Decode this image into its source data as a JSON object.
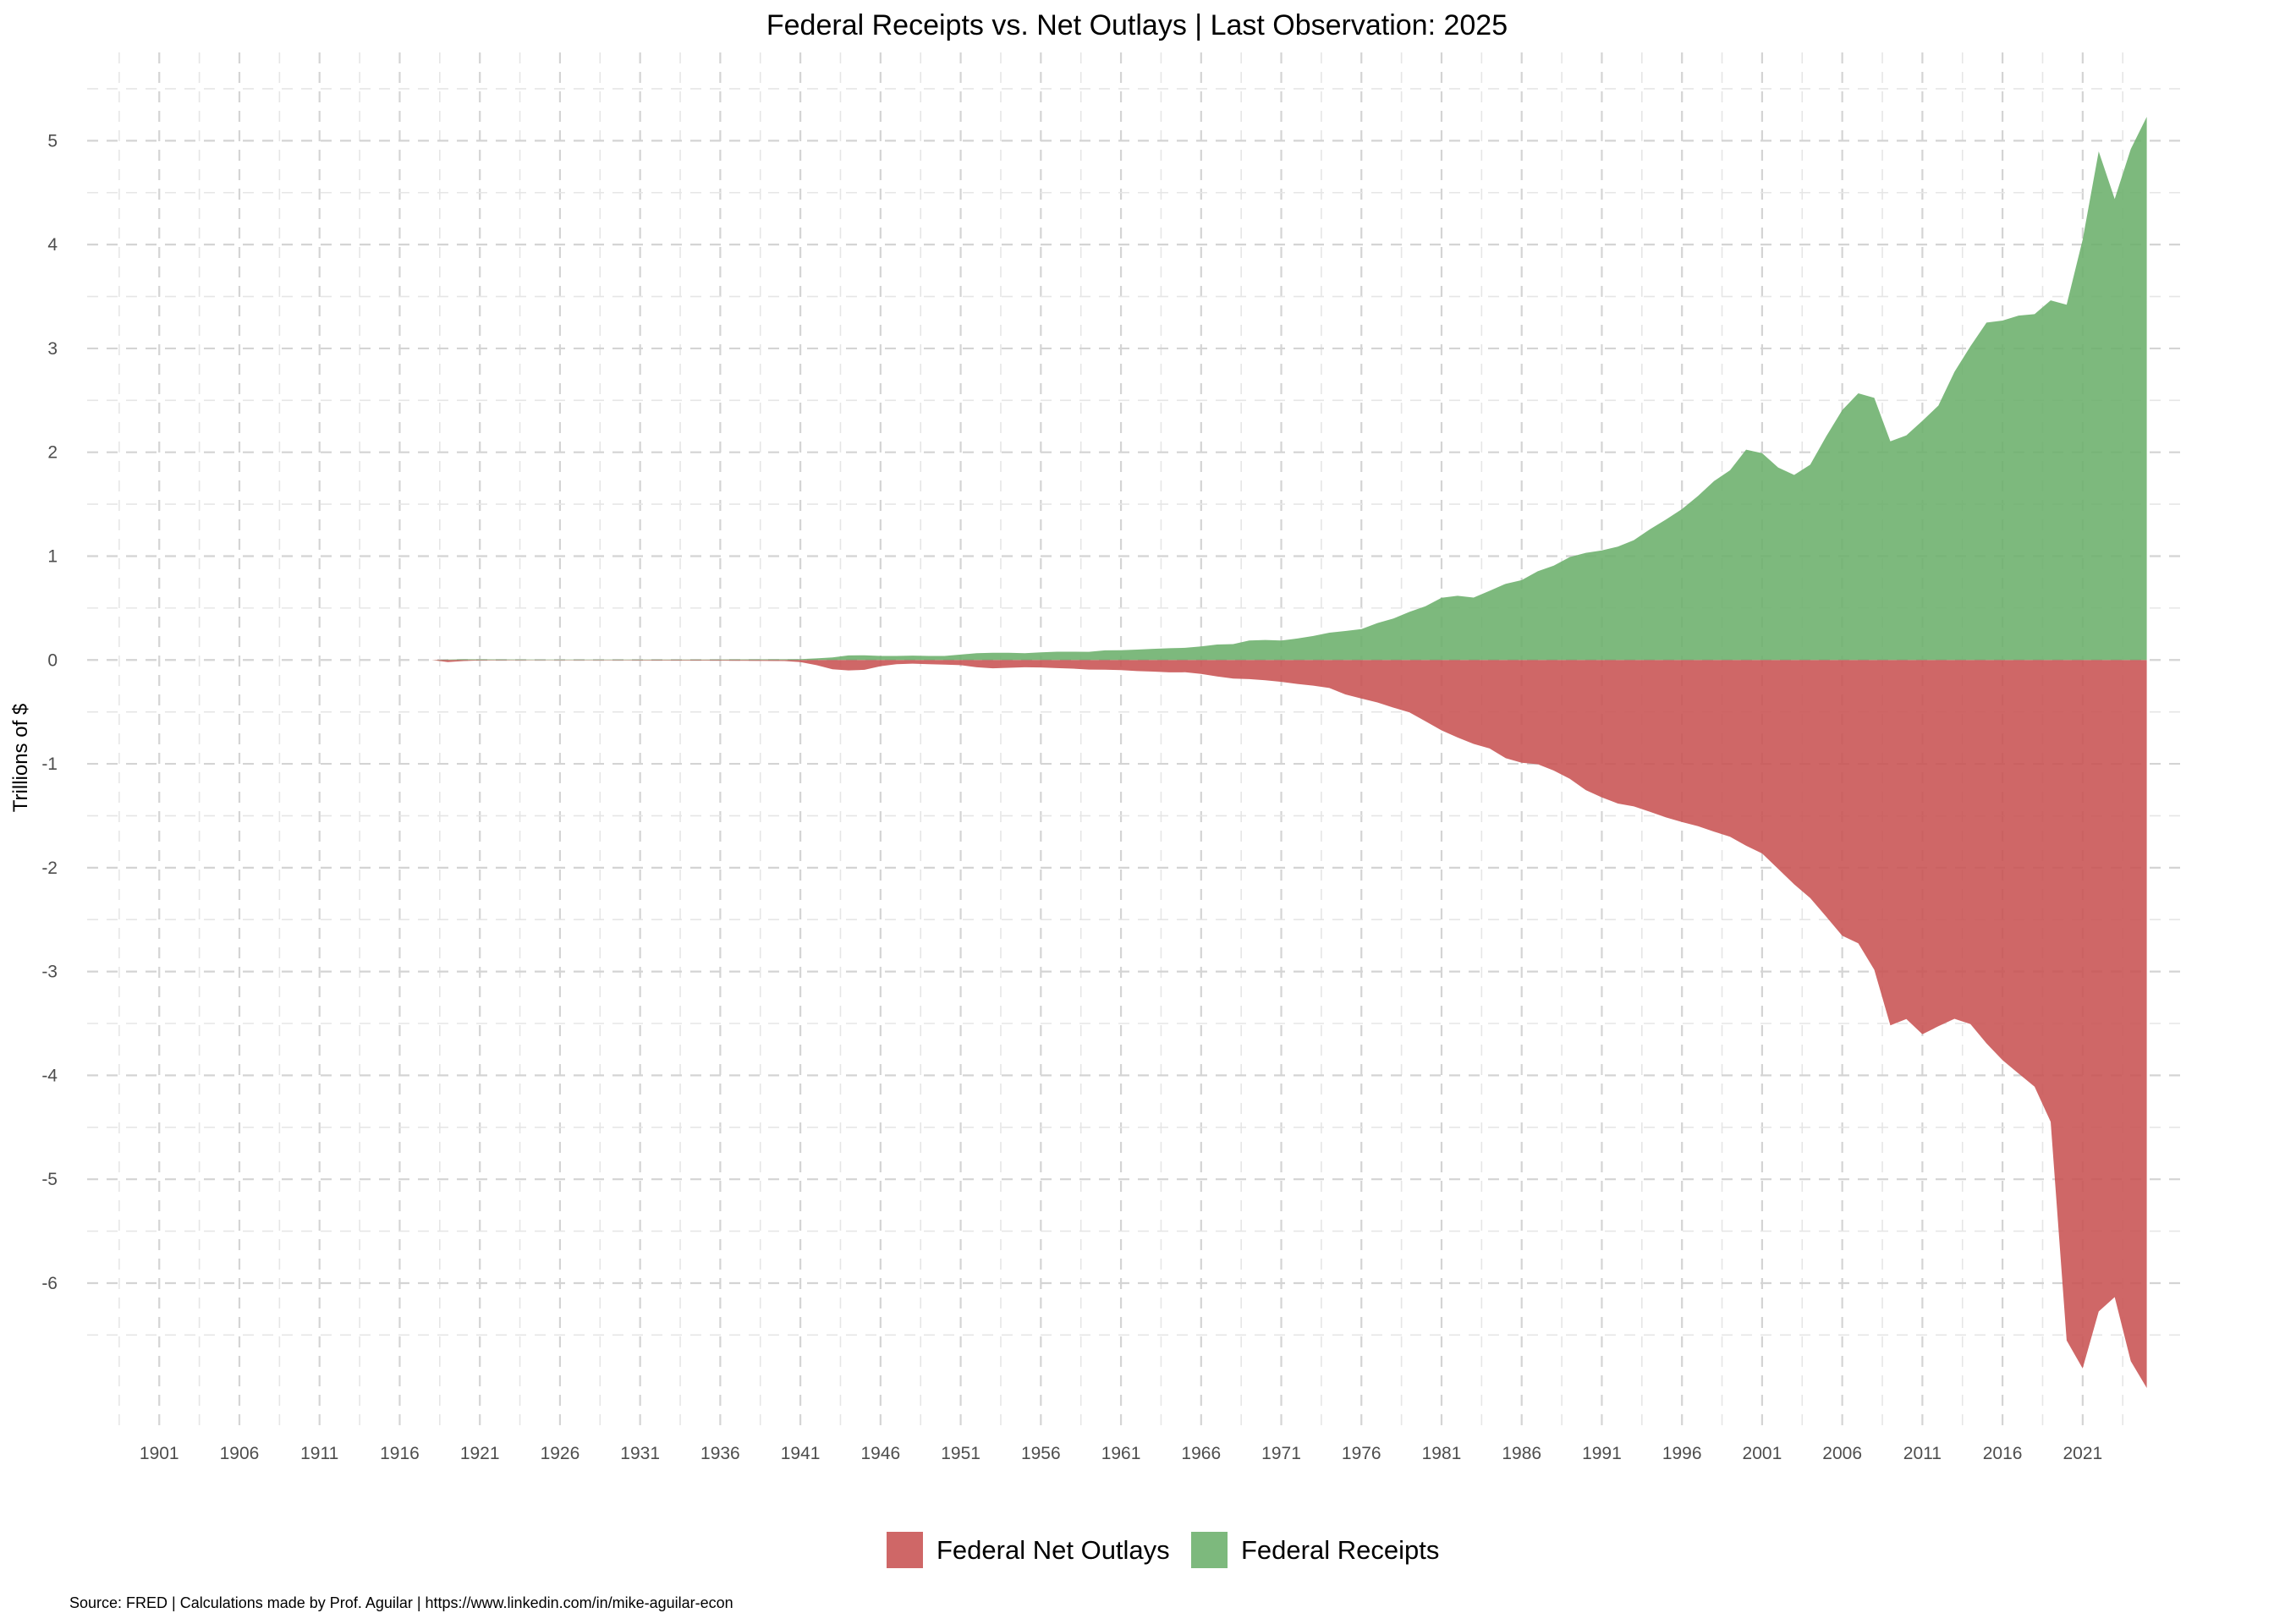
{
  "chart_data": {
    "type": "area",
    "title": "Federal Receipts vs. Net Outlays | Last Observation: 2025",
    "xlabel": "",
    "ylabel": "Trillions of $",
    "caption": "Source: FRED | Calculations made by Prof. Aguilar | https://www.linkedin.com/in/mike-aguilar-econ",
    "xlim": [
      1896.5,
      2027.5
    ],
    "ylim": [
      -7.45,
      5.85
    ],
    "x_ticks": [
      1901,
      1906,
      1911,
      1916,
      1921,
      1926,
      1931,
      1936,
      1941,
      1946,
      1951,
      1956,
      1961,
      1966,
      1971,
      1976,
      1981,
      1986,
      1991,
      1996,
      2001,
      2006,
      2011,
      2016,
      2021
    ],
    "y_ticks": [
      -6,
      -5,
      -4,
      -3,
      -2,
      -1,
      0,
      1,
      2,
      3,
      4,
      5
    ],
    "grid": true,
    "legend_position": "bottom",
    "series": [
      {
        "name": "Federal Net Outlays",
        "color": "#c85050",
        "points": [
          [
            1918,
            0
          ],
          [
            1919,
            -0.02
          ],
          [
            1920,
            -0.01
          ],
          [
            1921,
            -0.005
          ],
          [
            1925,
            -0.003
          ],
          [
            1930,
            -0.004
          ],
          [
            1935,
            -0.006
          ],
          [
            1940,
            -0.01
          ],
          [
            1941,
            -0.02
          ],
          [
            1942,
            -0.05
          ],
          [
            1943,
            -0.09
          ],
          [
            1944,
            -0.1
          ],
          [
            1945,
            -0.095
          ],
          [
            1946,
            -0.06
          ],
          [
            1947,
            -0.04
          ],
          [
            1948,
            -0.035
          ],
          [
            1949,
            -0.04
          ],
          [
            1950,
            -0.045
          ],
          [
            1951,
            -0.05
          ],
          [
            1952,
            -0.07
          ],
          [
            1953,
            -0.08
          ],
          [
            1954,
            -0.075
          ],
          [
            1955,
            -0.07
          ],
          [
            1956,
            -0.072
          ],
          [
            1957,
            -0.078
          ],
          [
            1958,
            -0.083
          ],
          [
            1959,
            -0.092
          ],
          [
            1960,
            -0.093
          ],
          [
            1961,
            -0.098
          ],
          [
            1962,
            -0.107
          ],
          [
            1963,
            -0.112
          ],
          [
            1964,
            -0.119
          ],
          [
            1965,
            -0.118
          ],
          [
            1966,
            -0.135
          ],
          [
            1967,
            -0.158
          ],
          [
            1968,
            -0.179
          ],
          [
            1969,
            -0.184
          ],
          [
            1970,
            -0.196
          ],
          [
            1971,
            -0.21
          ],
          [
            1972,
            -0.231
          ],
          [
            1973,
            -0.247
          ],
          [
            1974,
            -0.27
          ],
          [
            1975,
            -0.332
          ],
          [
            1976,
            -0.372
          ],
          [
            1977,
            -0.409
          ],
          [
            1978,
            -0.459
          ],
          [
            1979,
            -0.504
          ],
          [
            1980,
            -0.59
          ],
          [
            1981,
            -0.678
          ],
          [
            1982,
            -0.746
          ],
          [
            1983,
            -0.808
          ],
          [
            1984,
            -0.852
          ],
          [
            1985,
            -0.946
          ],
          [
            1986,
            -0.99
          ],
          [
            1987,
            -1.004
          ],
          [
            1988,
            -1.065
          ],
          [
            1989,
            -1.144
          ],
          [
            1990,
            -1.253
          ],
          [
            1991,
            -1.324
          ],
          [
            1992,
            -1.382
          ],
          [
            1993,
            -1.41
          ],
          [
            1994,
            -1.462
          ],
          [
            1995,
            -1.516
          ],
          [
            1996,
            -1.561
          ],
          [
            1997,
            -1.601
          ],
          [
            1998,
            -1.653
          ],
          [
            1999,
            -1.702
          ],
          [
            2000,
            -1.789
          ],
          [
            2001,
            -1.863
          ],
          [
            2002,
            -2.011
          ],
          [
            2003,
            -2.16
          ],
          [
            2004,
            -2.293
          ],
          [
            2005,
            -2.472
          ],
          [
            2006,
            -2.655
          ],
          [
            2007,
            -2.729
          ],
          [
            2008,
            -2.983
          ],
          [
            2009,
            -3.518
          ],
          [
            2010,
            -3.457
          ],
          [
            2011,
            -3.603
          ],
          [
            2012,
            -3.527
          ],
          [
            2013,
            -3.455
          ],
          [
            2014,
            -3.506
          ],
          [
            2015,
            -3.692
          ],
          [
            2016,
            -3.853
          ],
          [
            2017,
            -3.982
          ],
          [
            2018,
            -4.109
          ],
          [
            2019,
            -4.447
          ],
          [
            2020,
            -6.552
          ],
          [
            2021,
            -6.822
          ],
          [
            2022,
            -6.273
          ],
          [
            2023,
            -6.135
          ],
          [
            2024,
            -6.752
          ],
          [
            2025,
            -7.01
          ]
        ]
      },
      {
        "name": "Federal Receipts",
        "color": "#6aaf6a",
        "points": [
          [
            1918,
            0
          ],
          [
            1919,
            0.005
          ],
          [
            1920,
            0.007
          ],
          [
            1921,
            0.006
          ],
          [
            1925,
            0.004
          ],
          [
            1930,
            0.004
          ],
          [
            1935,
            0.004
          ],
          [
            1940,
            0.007
          ],
          [
            1941,
            0.009
          ],
          [
            1942,
            0.015
          ],
          [
            1943,
            0.024
          ],
          [
            1944,
            0.044
          ],
          [
            1945,
            0.045
          ],
          [
            1946,
            0.039
          ],
          [
            1947,
            0.039
          ],
          [
            1948,
            0.042
          ],
          [
            1949,
            0.039
          ],
          [
            1950,
            0.039
          ],
          [
            1951,
            0.052
          ],
          [
            1952,
            0.066
          ],
          [
            1953,
            0.07
          ],
          [
            1954,
            0.07
          ],
          [
            1955,
            0.066
          ],
          [
            1956,
            0.074
          ],
          [
            1957,
            0.08
          ],
          [
            1958,
            0.08
          ],
          [
            1959,
            0.079
          ],
          [
            1960,
            0.093
          ],
          [
            1961,
            0.094
          ],
          [
            1962,
            0.1
          ],
          [
            1963,
            0.107
          ],
          [
            1964,
            0.113
          ],
          [
            1965,
            0.117
          ],
          [
            1966,
            0.131
          ],
          [
            1967,
            0.149
          ],
          [
            1968,
            0.153
          ],
          [
            1969,
            0.187
          ],
          [
            1970,
            0.193
          ],
          [
            1971,
            0.187
          ],
          [
            1972,
            0.207
          ],
          [
            1973,
            0.231
          ],
          [
            1974,
            0.263
          ],
          [
            1975,
            0.279
          ],
          [
            1976,
            0.298
          ],
          [
            1977,
            0.356
          ],
          [
            1978,
            0.4
          ],
          [
            1979,
            0.463
          ],
          [
            1980,
            0.517
          ],
          [
            1981,
            0.599
          ],
          [
            1982,
            0.618
          ],
          [
            1983,
            0.601
          ],
          [
            1984,
            0.666
          ],
          [
            1985,
            0.734
          ],
          [
            1986,
            0.769
          ],
          [
            1987,
            0.854
          ],
          [
            1988,
            0.909
          ],
          [
            1989,
            0.991
          ],
          [
            1990,
            1.032
          ],
          [
            1991,
            1.055
          ],
          [
            1992,
            1.091
          ],
          [
            1993,
            1.154
          ],
          [
            1994,
            1.259
          ],
          [
            1995,
            1.352
          ],
          [
            1996,
            1.453
          ],
          [
            1997,
            1.579
          ],
          [
            1998,
            1.722
          ],
          [
            1999,
            1.827
          ],
          [
            2000,
            2.025
          ],
          [
            2001,
            1.991
          ],
          [
            2002,
            1.853
          ],
          [
            2003,
            1.782
          ],
          [
            2004,
            1.88
          ],
          [
            2005,
            2.153
          ],
          [
            2006,
            2.406
          ],
          [
            2007,
            2.568
          ],
          [
            2008,
            2.524
          ],
          [
            2009,
            2.105
          ],
          [
            2010,
            2.163
          ],
          [
            2011,
            2.303
          ],
          [
            2012,
            2.45
          ],
          [
            2013,
            2.775
          ],
          [
            2014,
            3.021
          ],
          [
            2015,
            3.249
          ],
          [
            2016,
            3.268
          ],
          [
            2017,
            3.316
          ],
          [
            2018,
            3.33
          ],
          [
            2019,
            3.463
          ],
          [
            2020,
            3.421
          ],
          [
            2021,
            4.047
          ],
          [
            2022,
            4.897
          ],
          [
            2023,
            4.439
          ],
          [
            2024,
            4.919
          ],
          [
            2025,
            5.23
          ]
        ]
      }
    ]
  }
}
